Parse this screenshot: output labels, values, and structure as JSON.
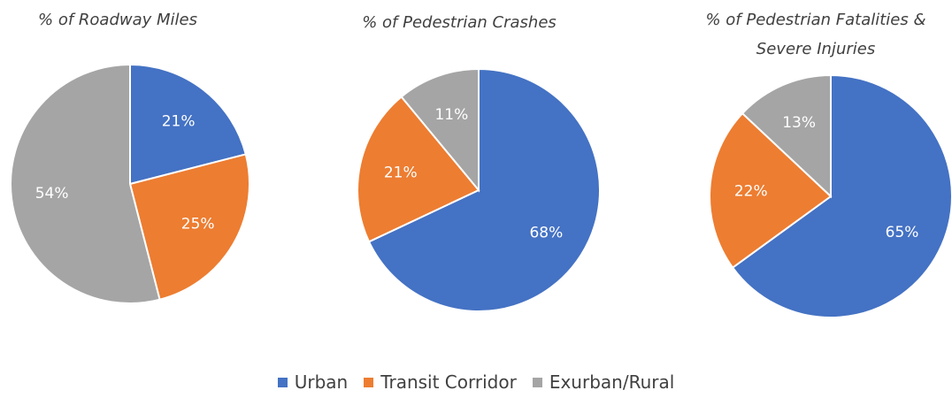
{
  "chart_data": [
    {
      "type": "pie",
      "title": "% of Roadway Miles",
      "categories": [
        "Urban",
        "Transit Corridor",
        "Exurban/Rural"
      ],
      "colors": [
        "#4472c4",
        "#ed7d31",
        "#a5a5a5"
      ],
      "values": [
        21,
        25,
        54
      ],
      "value_labels": [
        "21%",
        "25%",
        "54%"
      ]
    },
    {
      "type": "pie",
      "title": "% of Pedestrian Crashes",
      "categories": [
        "Urban",
        "Transit Corridor",
        "Exurban/Rural"
      ],
      "colors": [
        "#4472c4",
        "#ed7d31",
        "#a5a5a5"
      ],
      "values": [
        68,
        21,
        11
      ],
      "value_labels": [
        "68%",
        "21%",
        "11%"
      ]
    },
    {
      "type": "pie",
      "title": "% of Pedestrian Fatalities & Severe Injuries",
      "categories": [
        "Urban",
        "Transit Corridor",
        "Exurban/Rural"
      ],
      "colors": [
        "#4472c4",
        "#ed7d31",
        "#a5a5a5"
      ],
      "values": [
        65,
        22,
        13
      ],
      "value_labels": [
        "65%",
        "22%",
        "13%"
      ]
    }
  ]
}
